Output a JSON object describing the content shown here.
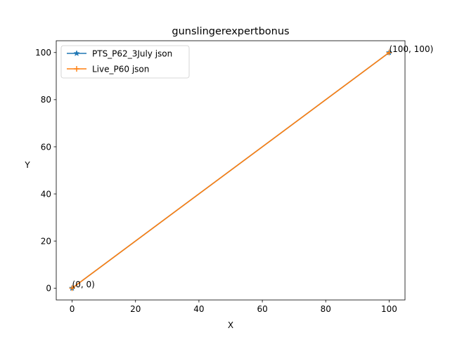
{
  "chart_data": {
    "type": "line",
    "title": "gunslingerexpertbonus",
    "xlabel": "X",
    "ylabel": "Y",
    "xlim": [
      -5,
      105
    ],
    "ylim": [
      -5,
      105
    ],
    "xticks": [
      0,
      20,
      40,
      60,
      80,
      100
    ],
    "yticks": [
      0,
      20,
      40,
      60,
      80,
      100
    ],
    "grid": false,
    "legend_position": "upper-left",
    "series": [
      {
        "name": "PTS_P62_3July json",
        "x": [
          0,
          100
        ],
        "y": [
          0,
          100
        ],
        "color": "#1f77b4",
        "marker": "star"
      },
      {
        "name": "Live_P60 json",
        "x": [
          0,
          100
        ],
        "y": [
          0,
          100
        ],
        "color": "#ff7f0e",
        "marker": "plus"
      }
    ],
    "annotations": [
      {
        "text": "(0, 0)",
        "x": 0,
        "y": 0
      },
      {
        "text": "(100, 100)",
        "x": 100,
        "y": 100
      }
    ]
  }
}
